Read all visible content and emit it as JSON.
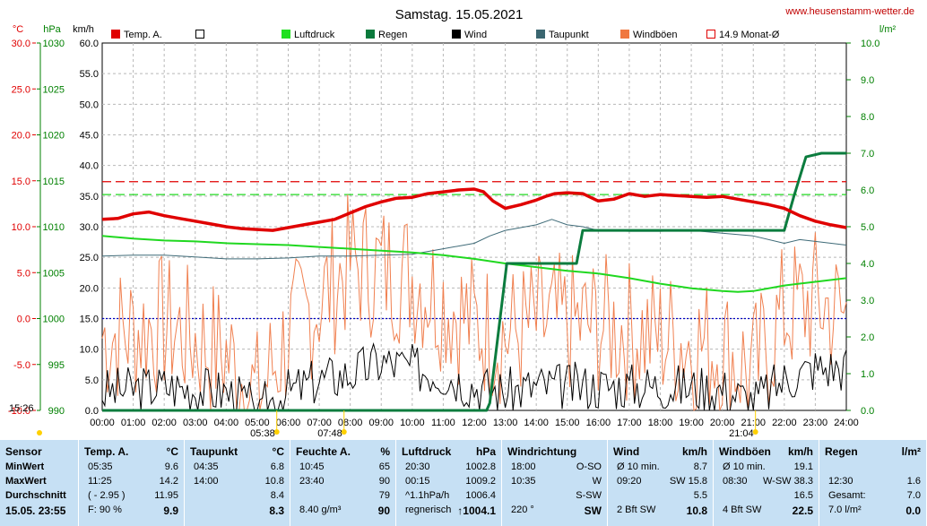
{
  "header": {
    "title": "Samstag. 15.05.2021",
    "website": "www.heusenstamm-wetter.de"
  },
  "units": {
    "temp": "°C",
    "press": "hPa",
    "wind": "km/h",
    "rain": "l/m²"
  },
  "legend": [
    {
      "label": "Temp. A.",
      "color": "#e00000",
      "type": "box"
    },
    {
      "label": "",
      "color": "#ffffff",
      "type": "empty"
    },
    {
      "label": "Luftdruck",
      "color": "#20e020",
      "type": "box"
    },
    {
      "label": "Regen",
      "color": "#0a7a3c",
      "type": "box"
    },
    {
      "label": "Wind",
      "color": "#000000",
      "type": "box"
    },
    {
      "label": "Taupunkt",
      "color": "#3a6670",
      "type": "box"
    },
    {
      "label": "Windböen",
      "color": "#f07840",
      "type": "box"
    },
    {
      "label": "14.9 Monat-Ø",
      "color": "#e00000",
      "type": "outline"
    }
  ],
  "colors": {
    "temp": "#e00000",
    "press": "#20d820",
    "rain": "#0b7c3e",
    "wind": "#000000",
    "dew": "#3f6b78",
    "gust": "#f08050",
    "grid": "#b8b8b8",
    "zeroline": "#0000c0"
  },
  "chart_data": {
    "type": "line",
    "x_unit": "hour",
    "xlim": [
      0,
      24
    ],
    "x_ticks": [
      "00:00",
      "01:00",
      "02:00",
      "03:00",
      "04:00",
      "05:00",
      "06:00",
      "07:00",
      "08:00",
      "09:00",
      "10:00",
      "11:00",
      "12:00",
      "13:00",
      "14:00",
      "15:00",
      "16:00",
      "17:00",
      "18:00",
      "19:00",
      "20:00",
      "21:00",
      "22:00",
      "23:00",
      "24:00"
    ],
    "axes": {
      "temp": {
        "label": "°C",
        "ylim": [
          -10,
          30
        ],
        "ticks": [
          "-10.0",
          "-5.0",
          "0.0",
          "5.0",
          "10.0",
          "15.0",
          "20.0",
          "25.0",
          "30.0"
        ]
      },
      "press": {
        "label": "hPa",
        "ylim": [
          990,
          1030
        ],
        "ticks": [
          "990",
          "995",
          "1000",
          "1005",
          "1010",
          "1015",
          "1020",
          "1025",
          "1030"
        ]
      },
      "wind": {
        "label": "km/h",
        "ylim": [
          0,
          60
        ],
        "ticks": [
          "0.0",
          "5.0",
          "10.0",
          "15.0",
          "20.0",
          "25.0",
          "30.0",
          "35.0",
          "40.0",
          "45.0",
          "50.0",
          "55.0",
          "60.0"
        ]
      },
      "rain": {
        "label": "l/m²",
        "ylim": [
          0,
          10
        ],
        "ticks": [
          "0.0",
          "1.0",
          "2.0",
          "3.0",
          "4.0",
          "5.0",
          "6.0",
          "7.0",
          "8.0",
          "9.0",
          "10.0"
        ]
      }
    },
    "sun_markers": [
      {
        "label": "05:38",
        "hour": 5.63
      },
      {
        "label": "07:48",
        "hour": 7.8
      },
      {
        "label": "21:04",
        "hour": 21.07
      }
    ],
    "corner_time": "15:26",
    "reference_lines": [
      {
        "name": "14.9 Monat-Ø",
        "axis": "temp",
        "value": 14.9,
        "color": "#e00000"
      },
      {
        "axis": "press",
        "value": 1013.5,
        "color": "#20d820"
      },
      {
        "axis": "temp",
        "value": 0,
        "color": "#0000c0"
      }
    ],
    "series": [
      {
        "key": "temp",
        "axis": "temp",
        "width": 3.5,
        "points": [
          [
            0,
            10.8
          ],
          [
            0.5,
            10.9
          ],
          [
            1,
            11.4
          ],
          [
            1.5,
            11.6
          ],
          [
            2,
            11.2
          ],
          [
            2.5,
            10.9
          ],
          [
            3,
            10.6
          ],
          [
            3.5,
            10.3
          ],
          [
            4,
            10.0
          ],
          [
            4.5,
            9.8
          ],
          [
            5,
            9.7
          ],
          [
            5.5,
            9.6
          ],
          [
            6,
            9.9
          ],
          [
            6.5,
            10.2
          ],
          [
            7,
            10.5
          ],
          [
            7.5,
            10.8
          ],
          [
            8,
            11.5
          ],
          [
            8.5,
            12.2
          ],
          [
            9,
            12.7
          ],
          [
            9.5,
            13.1
          ],
          [
            10,
            13.2
          ],
          [
            10.5,
            13.6
          ],
          [
            11,
            13.8
          ],
          [
            11.5,
            14.0
          ],
          [
            12,
            14.1
          ],
          [
            12.3,
            13.8
          ],
          [
            12.6,
            12.8
          ],
          [
            13,
            12.0
          ],
          [
            13.5,
            12.4
          ],
          [
            14,
            12.9
          ],
          [
            14.3,
            13.3
          ],
          [
            14.6,
            13.6
          ],
          [
            15,
            13.7
          ],
          [
            15.5,
            13.6
          ],
          [
            16,
            12.8
          ],
          [
            16.5,
            13.0
          ],
          [
            17,
            13.6
          ],
          [
            17.5,
            13.3
          ],
          [
            18,
            13.5
          ],
          [
            18.5,
            13.4
          ],
          [
            19,
            13.3
          ],
          [
            19.5,
            13.2
          ],
          [
            20,
            13.3
          ],
          [
            20.5,
            13.0
          ],
          [
            21,
            12.7
          ],
          [
            21.5,
            12.4
          ],
          [
            22,
            12.0
          ],
          [
            22.5,
            11.2
          ],
          [
            23,
            10.6
          ],
          [
            23.5,
            10.2
          ],
          [
            24,
            9.9
          ]
        ]
      },
      {
        "key": "dew",
        "axis": "temp",
        "width": 1,
        "points": [
          [
            0,
            6.8
          ],
          [
            1,
            6.9
          ],
          [
            2,
            6.9
          ],
          [
            3,
            6.7
          ],
          [
            4,
            6.5
          ],
          [
            5,
            6.5
          ],
          [
            6,
            6.6
          ],
          [
            7,
            6.8
          ],
          [
            8,
            6.8
          ],
          [
            9,
            6.9
          ],
          [
            10,
            7.0
          ],
          [
            11,
            7.6
          ],
          [
            12,
            8.2
          ],
          [
            12.5,
            9.0
          ],
          [
            13,
            9.6
          ],
          [
            14,
            10.2
          ],
          [
            14.5,
            10.8
          ],
          [
            15,
            10.2
          ],
          [
            15.5,
            10.0
          ],
          [
            16,
            9.6
          ],
          [
            17,
            9.5
          ],
          [
            18,
            9.5
          ],
          [
            19,
            9.6
          ],
          [
            20,
            9.3
          ],
          [
            21,
            9.0
          ],
          [
            22,
            8.2
          ],
          [
            22.5,
            8.6
          ],
          [
            23,
            8.4
          ],
          [
            24,
            8.0
          ]
        ]
      },
      {
        "key": "press",
        "axis": "press",
        "width": 2,
        "points": [
          [
            0,
            1009.0
          ],
          [
            1,
            1008.7
          ],
          [
            2,
            1008.5
          ],
          [
            3,
            1008.4
          ],
          [
            4,
            1008.2
          ],
          [
            5,
            1008.1
          ],
          [
            6,
            1008.0
          ],
          [
            7,
            1007.8
          ],
          [
            8,
            1007.6
          ],
          [
            9,
            1007.4
          ],
          [
            10,
            1007.2
          ],
          [
            11,
            1006.9
          ],
          [
            12,
            1006.5
          ],
          [
            13,
            1006.0
          ],
          [
            14,
            1005.6
          ],
          [
            15,
            1005.2
          ],
          [
            16,
            1004.9
          ],
          [
            17,
            1004.4
          ],
          [
            18,
            1003.8
          ],
          [
            19,
            1003.3
          ],
          [
            20,
            1003.0
          ],
          [
            20.5,
            1002.9
          ],
          [
            21,
            1003.0
          ],
          [
            22,
            1003.6
          ],
          [
            23,
            1004.0
          ],
          [
            24,
            1004.4
          ]
        ]
      },
      {
        "key": "rain",
        "axis": "rain",
        "width": 3,
        "points": [
          [
            0,
            0
          ],
          [
            12.4,
            0
          ],
          [
            12.5,
            0.2
          ],
          [
            13.05,
            4.0
          ],
          [
            15.3,
            4.0
          ],
          [
            15.5,
            4.9
          ],
          [
            22.0,
            4.9
          ],
          [
            22.3,
            5.8
          ],
          [
            22.7,
            6.9
          ],
          [
            23.2,
            7.0
          ],
          [
            24,
            7.0
          ]
        ]
      }
    ],
    "noisy_series": [
      {
        "key": "gust",
        "axis": "wind",
        "width": 1,
        "mean": [
          [
            0,
            12
          ],
          [
            2,
            14
          ],
          [
            4,
            9
          ],
          [
            5,
            2
          ],
          [
            6,
            12
          ],
          [
            7,
            18
          ],
          [
            8,
            24
          ],
          [
            10,
            22
          ],
          [
            12,
            14
          ],
          [
            13,
            12
          ],
          [
            14,
            14
          ],
          [
            16,
            14
          ],
          [
            18,
            12
          ],
          [
            20,
            10
          ],
          [
            21,
            6
          ],
          [
            22,
            16
          ],
          [
            23,
            18
          ],
          [
            24,
            15
          ]
        ],
        "amp": 12,
        "seed": 7
      },
      {
        "key": "wind",
        "axis": "wind",
        "width": 1,
        "mean": [
          [
            0,
            3
          ],
          [
            2,
            4
          ],
          [
            4,
            3
          ],
          [
            5,
            0.5
          ],
          [
            6,
            3
          ],
          [
            7,
            5
          ],
          [
            8,
            6
          ],
          [
            9,
            8
          ],
          [
            10,
            7
          ],
          [
            11,
            6
          ],
          [
            12,
            4
          ],
          [
            13,
            3
          ],
          [
            14,
            4
          ],
          [
            16,
            4
          ],
          [
            18,
            4
          ],
          [
            20,
            3.5
          ],
          [
            21,
            1.5
          ],
          [
            22,
            5
          ],
          [
            23,
            7
          ],
          [
            24,
            7
          ]
        ],
        "amp": 4,
        "seed": 3
      }
    ]
  },
  "stats": {
    "date": "15.05. 23:55",
    "blocks": [
      {
        "key": "sensor",
        "head": "Sensor",
        "unit": "",
        "rows": [
          "MinWert",
          "MaxWert",
          "Durchschnitt"
        ]
      },
      {
        "key": "temp",
        "head": "Temp. A.",
        "unit": "°C",
        "rows": [
          [
            "05:35",
            "9.6"
          ],
          [
            "11:25",
            "14.2"
          ],
          [
            "( - 2.95 )",
            "11.95"
          ],
          [
            "F: 90 %",
            "9.9"
          ]
        ]
      },
      {
        "key": "dew",
        "head": "Taupunkt",
        "unit": "°C",
        "rows": [
          [
            "04:35",
            "6.8"
          ],
          [
            "14:00",
            "10.8"
          ],
          [
            "",
            "8.4"
          ],
          [
            "",
            "8.3"
          ]
        ]
      },
      {
        "key": "hum",
        "head": "Feuchte A.",
        "unit": "%",
        "rows": [
          [
            "10:45",
            "65"
          ],
          [
            "23:40",
            "90"
          ],
          [
            "",
            "79"
          ],
          [
            "8.40 g/m³",
            "90"
          ]
        ]
      },
      {
        "key": "press",
        "head": "Luftdruck",
        "unit": "hPa",
        "rows": [
          [
            "20:30",
            "1002.8"
          ],
          [
            "00:15",
            "1009.2"
          ],
          [
            "^1.1hPa/h",
            "1006.4"
          ],
          [
            "regnerisch",
            "↑1004.1"
          ]
        ]
      },
      {
        "key": "dir",
        "head": "Windrichtung",
        "unit": "",
        "rows": [
          [
            "18:00",
            "O-SO"
          ],
          [
            "10:35",
            "W"
          ],
          [
            "",
            "S-SW"
          ],
          [
            "220 °",
            "SW"
          ]
        ]
      },
      {
        "key": "wind",
        "head": "Wind",
        "unit": "km/h",
        "rows": [
          [
            "Ø 10 min.",
            "8.7"
          ],
          [
            "09:20",
            "SW 15.8"
          ],
          [
            "",
            "5.5"
          ],
          [
            "2 Bft SW",
            "10.8"
          ]
        ]
      },
      {
        "key": "gust",
        "head": "Windböen",
        "unit": "km/h",
        "rows": [
          [
            "Ø 10 min.",
            "19.1"
          ],
          [
            "08:30",
            "W-SW 38.3"
          ],
          [
            "",
            "16.5"
          ],
          [
            "4 Bft SW",
            "22.5"
          ]
        ]
      },
      {
        "key": "rain",
        "head": "Regen",
        "unit": "l/m²",
        "rows": [
          [
            "12:30",
            "1.6"
          ],
          [
            "Gesamt:",
            "7.0"
          ],
          [
            "7.0 l/m²",
            "0.0"
          ]
        ]
      }
    ]
  }
}
